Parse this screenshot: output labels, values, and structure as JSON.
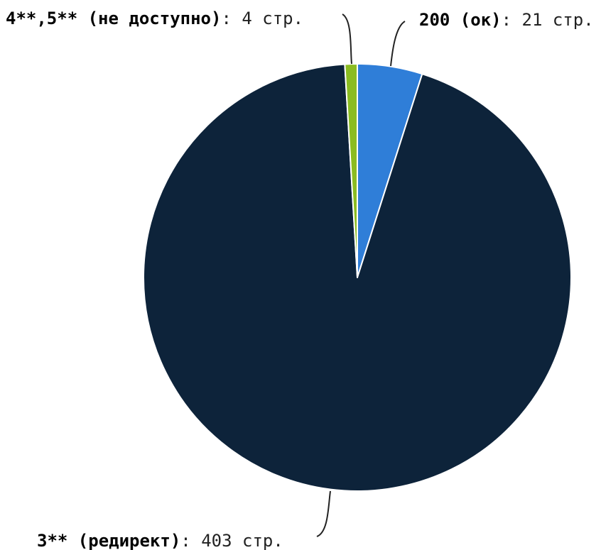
{
  "chart_data": {
    "type": "pie",
    "title": "",
    "unit": "стр.",
    "slices": [
      {
        "name": "200 (ок)",
        "value": 21,
        "value_text": "21 стр.",
        "color": "#2f7ed8"
      },
      {
        "name": "3** (редирект)",
        "value": 403,
        "value_text": "403 стр.",
        "color": "#0d233a"
      },
      {
        "name": "4**,5** (не доступно)",
        "value": 4,
        "value_text": "4 стр.",
        "color": "#8bbc21"
      }
    ],
    "legend": "none"
  }
}
